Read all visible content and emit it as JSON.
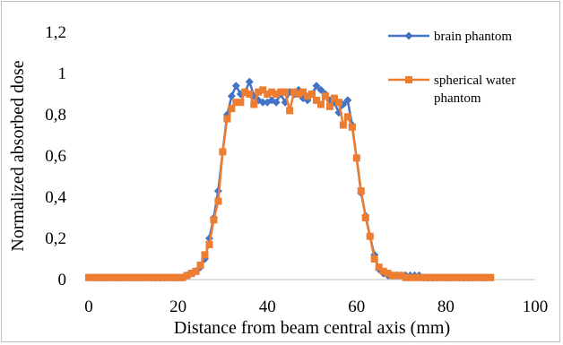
{
  "chart_data": {
    "type": "line",
    "title": "",
    "xlabel": "Distance from beam central axis (mm)",
    "ylabel": "Normalized absorbed dose",
    "xlim": [
      0,
      100
    ],
    "ylim": [
      0,
      1.2
    ],
    "x_ticks": [
      "0",
      "20",
      "40",
      "60",
      "80",
      "100"
    ],
    "y_ticks": [
      "0",
      "0,2",
      "0,4",
      "0,6",
      "0,8",
      "1",
      "1,2"
    ],
    "x_tick_values": [
      0,
      20,
      40,
      60,
      80,
      100
    ],
    "y_tick_values": [
      0,
      0.2,
      0.4,
      0.6,
      0.8,
      1.0,
      1.2
    ],
    "grid": false,
    "legend_position": "top-right",
    "series": [
      {
        "name": "brain phantom",
        "color": "#4472C4",
        "marker": "diamond",
        "x": [
          0,
          1,
          2,
          3,
          4,
          5,
          6,
          7,
          8,
          9,
          10,
          11,
          12,
          13,
          14,
          15,
          16,
          17,
          18,
          19,
          20,
          21,
          22,
          23,
          24,
          25,
          26,
          27,
          28,
          29,
          30,
          31,
          32,
          33,
          34,
          35,
          36,
          37,
          38,
          39,
          40,
          41,
          42,
          43,
          44,
          45,
          46,
          47,
          48,
          49,
          50,
          51,
          52,
          53,
          54,
          55,
          56,
          57,
          58,
          59,
          60,
          61,
          62,
          63,
          64,
          65,
          66,
          67,
          68,
          69,
          70,
          71,
          72,
          73,
          74,
          75,
          76,
          77,
          78,
          79,
          80,
          81,
          82,
          83,
          84,
          85,
          86,
          87,
          88,
          89,
          90
        ],
        "y": [
          0.01,
          0.01,
          0.01,
          0.01,
          0.01,
          0.01,
          0.01,
          0.01,
          0.01,
          0.01,
          0.01,
          0.01,
          0.01,
          0.01,
          0.01,
          0.01,
          0.01,
          0.01,
          0.01,
          0.01,
          0.01,
          0.01,
          0.02,
          0.03,
          0.04,
          0.06,
          0.1,
          0.2,
          0.3,
          0.43,
          0.62,
          0.8,
          0.89,
          0.94,
          0.9,
          0.91,
          0.96,
          0.89,
          0.87,
          0.86,
          0.86,
          0.87,
          0.86,
          0.9,
          0.86,
          0.91,
          0.9,
          0.92,
          0.88,
          0.87,
          0.9,
          0.94,
          0.92,
          0.9,
          0.87,
          0.86,
          0.81,
          0.85,
          0.87,
          0.75,
          0.59,
          0.42,
          0.31,
          0.21,
          0.12,
          0.05,
          0.03,
          0.02,
          0.02,
          0.02,
          0.02,
          0.02,
          0.02,
          0.02,
          0.02,
          0.01,
          0.01,
          0.01,
          0.01,
          0.01,
          0.01,
          0.01,
          0.01,
          0.01,
          0.01,
          0.01,
          0.01,
          0.01,
          0.01,
          0.01,
          0.01
        ]
      },
      {
        "name": "spherical water phantom",
        "color": "#ED7D31",
        "marker": "square",
        "x": [
          0,
          1,
          2,
          3,
          4,
          5,
          6,
          7,
          8,
          9,
          10,
          11,
          12,
          13,
          14,
          15,
          16,
          17,
          18,
          19,
          20,
          21,
          22,
          23,
          24,
          25,
          26,
          27,
          28,
          29,
          30,
          31,
          32,
          33,
          34,
          35,
          36,
          37,
          38,
          39,
          40,
          41,
          42,
          43,
          44,
          45,
          46,
          47,
          48,
          49,
          50,
          51,
          52,
          53,
          54,
          55,
          56,
          57,
          58,
          59,
          60,
          61,
          62,
          63,
          64,
          65,
          66,
          67,
          68,
          69,
          70,
          71,
          72,
          73,
          74,
          75,
          76,
          77,
          78,
          79,
          80,
          81,
          82,
          83,
          84,
          85,
          86,
          87,
          88,
          89,
          90
        ],
        "y": [
          0.01,
          0.01,
          0.01,
          0.01,
          0.01,
          0.01,
          0.01,
          0.01,
          0.01,
          0.01,
          0.01,
          0.01,
          0.01,
          0.01,
          0.01,
          0.01,
          0.01,
          0.01,
          0.01,
          0.01,
          0.01,
          0.01,
          0.02,
          0.03,
          0.04,
          0.07,
          0.12,
          0.17,
          0.29,
          0.38,
          0.62,
          0.78,
          0.83,
          0.86,
          0.86,
          0.91,
          0.9,
          0.85,
          0.91,
          0.92,
          0.9,
          0.91,
          0.9,
          0.91,
          0.91,
          0.82,
          0.91,
          0.9,
          0.91,
          0.89,
          0.9,
          0.87,
          0.85,
          0.89,
          0.84,
          0.88,
          0.86,
          0.75,
          0.79,
          0.74,
          0.59,
          0.43,
          0.3,
          0.21,
          0.1,
          0.06,
          0.04,
          0.03,
          0.02,
          0.02,
          0.02,
          0.01,
          0.01,
          0.01,
          0.01,
          0.01,
          0.01,
          0.01,
          0.01,
          0.01,
          0.01,
          0.01,
          0.01,
          0.01,
          0.01,
          0.01,
          0.01,
          0.01,
          0.01,
          0.01,
          0.01
        ]
      }
    ]
  }
}
